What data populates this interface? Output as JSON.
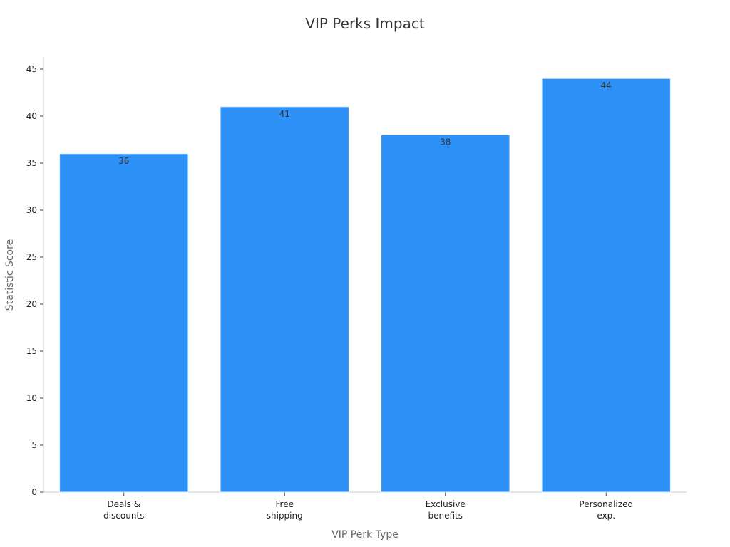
{
  "chart_data": {
    "type": "bar",
    "title": "VIP Perks Impact",
    "xlabel": "VIP Perk Type",
    "ylabel": "Statistic Score",
    "categories": [
      [
        "Deals &",
        "discounts"
      ],
      [
        "Free",
        "shipping"
      ],
      [
        "Exclusive",
        "benefits"
      ],
      [
        "Personalized",
        "exp."
      ]
    ],
    "values": [
      36,
      41,
      38,
      44
    ],
    "ylim": [
      0,
      45
    ],
    "yticks": [
      0,
      5,
      10,
      15,
      20,
      25,
      30,
      35,
      40,
      45
    ],
    "grid": false,
    "colors": {
      "bar": "#2e91f7",
      "axis": "#cccccc",
      "tick": "#444444"
    }
  }
}
